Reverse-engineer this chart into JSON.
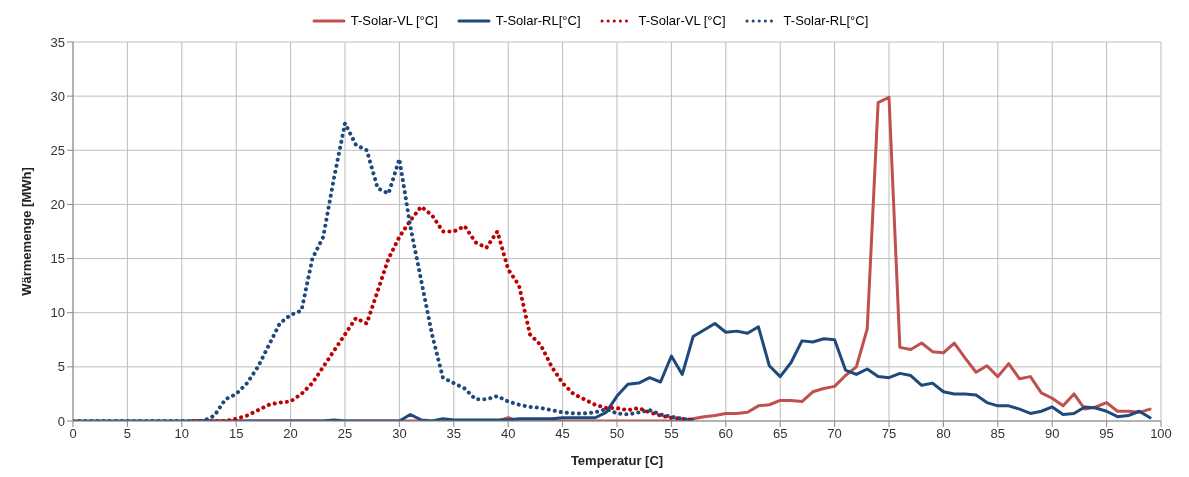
{
  "chart_data": {
    "type": "line",
    "xlabel": "Temperatur [C]",
    "ylabel": "Wärmemenge [MWh]",
    "x": [
      0,
      1,
      2,
      3,
      4,
      5,
      6,
      7,
      8,
      9,
      10,
      11,
      12,
      13,
      14,
      15,
      16,
      17,
      18,
      19,
      20,
      21,
      22,
      23,
      24,
      25,
      26,
      27,
      28,
      29,
      30,
      31,
      32,
      33,
      34,
      35,
      36,
      37,
      38,
      39,
      40,
      41,
      42,
      43,
      44,
      45,
      46,
      47,
      48,
      49,
      50,
      51,
      52,
      53,
      54,
      55,
      56,
      57,
      58,
      59,
      60,
      61,
      62,
      63,
      64,
      65,
      66,
      67,
      68,
      69,
      70,
      71,
      72,
      73,
      74,
      75,
      76,
      77,
      78,
      79,
      80,
      81,
      82,
      83,
      84,
      85,
      86,
      87,
      88,
      89,
      90,
      91,
      92,
      93,
      94,
      95,
      96,
      97,
      98,
      99
    ],
    "series": [
      {
        "name": "T-Solar-VL [°C]",
        "color": "#c0504d",
        "line_style": "solid",
        "values": [
          null,
          null,
          null,
          null,
          null,
          null,
          null,
          null,
          null,
          null,
          null,
          0,
          0,
          0,
          0,
          0,
          0,
          0,
          0,
          0,
          0,
          0,
          0,
          0,
          0,
          0,
          0,
          0,
          0,
          0,
          0,
          0,
          0,
          0,
          0,
          0,
          0,
          0,
          0,
          0,
          0.3,
          0,
          0,
          0,
          0,
          0,
          0,
          0,
          0,
          0,
          0,
          0,
          0,
          0,
          0,
          0,
          0,
          0.2,
          0.4,
          0.5,
          0.7,
          0.7,
          0.8,
          1.4,
          1.5,
          1.9,
          1.9,
          1.8,
          2.7,
          3,
          3.2,
          4.2,
          5,
          8.5,
          29.4,
          29.9,
          6.8,
          6.6,
          7.2,
          6.4,
          6.3,
          7.2,
          5.8,
          4.5,
          5.1,
          4.1,
          5.3,
          3.9,
          4.1,
          2.6,
          2.1,
          1.4,
          2.5,
          1.1,
          1.3,
          1.7,
          0.9,
          0.9,
          0.8,
          1.1
        ]
      },
      {
        "name": "T-Solar-RL[°C]",
        "color": "#1f497d",
        "line_style": "solid",
        "values": [
          0,
          0,
          0,
          0,
          0,
          0,
          0,
          0,
          0,
          0,
          0,
          0,
          0,
          0,
          0,
          0,
          0,
          0,
          0,
          0,
          0,
          0,
          0,
          0,
          0.1,
          0,
          0,
          0,
          0,
          0,
          0,
          0.6,
          0.1,
          0,
          0.2,
          0.1,
          0.1,
          0.1,
          0.1,
          0.1,
          0.1,
          0.2,
          0.2,
          0.2,
          0.2,
          0.3,
          0.3,
          0.3,
          0.3,
          0.8,
          2.3,
          3.4,
          3.5,
          4,
          3.6,
          6,
          4.3,
          7.8,
          8.4,
          9,
          8.2,
          8.3,
          8.1,
          8.7,
          5.1,
          4.1,
          5.4,
          7.4,
          7.3,
          7.6,
          7.5,
          4.7,
          4.3,
          4.8,
          4.1,
          4,
          4.4,
          4.2,
          3.3,
          3.5,
          2.7,
          2.5,
          2.5,
          2.4,
          1.7,
          1.4,
          1.4,
          1.1,
          0.7,
          0.9,
          1.3,
          0.6,
          0.7,
          1.3,
          1.2,
          0.9,
          0.4,
          0.5,
          0.9,
          0.3
        ]
      },
      {
        "name": "T-Solar-VL [°C]",
        "color": "#c00000",
        "line_style": "dotted",
        "values": [
          null,
          null,
          null,
          null,
          null,
          null,
          null,
          null,
          null,
          null,
          null,
          0,
          0,
          0,
          0,
          0.2,
          0.5,
          1,
          1.5,
          1.7,
          1.8,
          2.5,
          3.5,
          5,
          6.5,
          8,
          9.5,
          9,
          12,
          15,
          17,
          18.5,
          19.8,
          19,
          17.5,
          17.5,
          18,
          16.5,
          16,
          17.5,
          14,
          12.5,
          8,
          7,
          5,
          3.5,
          2.5,
          2,
          1.5,
          1.2,
          1.2,
          1,
          1.2,
          0.8,
          0.5,
          0.3,
          0.2,
          0.1,
          null,
          null,
          null,
          null,
          null,
          null,
          null,
          null,
          null,
          null,
          null,
          null,
          null,
          null,
          null,
          null,
          null,
          null,
          null,
          null,
          null,
          null,
          null,
          null,
          null,
          null,
          null,
          null,
          null,
          null,
          null,
          null,
          null,
          null,
          null,
          null,
          null,
          null,
          null,
          null,
          null,
          null
        ]
      },
      {
        "name": "T-Solar-RL[°C]",
        "color": "#1f497d",
        "line_style": "dotted",
        "values": [
          0,
          0,
          0,
          0,
          0,
          0,
          0,
          0,
          0,
          0,
          0,
          0,
          0,
          0.5,
          2,
          2.5,
          3.5,
          5,
          7,
          9,
          9.8,
          10.2,
          15,
          17,
          22.5,
          27.5,
          25.5,
          25,
          21.5,
          21,
          24.2,
          18,
          13,
          8,
          4,
          3.5,
          3,
          2,
          2,
          2.3,
          1.8,
          1.5,
          1.3,
          1.2,
          1,
          0.8,
          0.7,
          0.7,
          0.8,
          1.1,
          0.7,
          0.6,
          0.8,
          1,
          0.6,
          0.4,
          0.2,
          0.1,
          null,
          null,
          null,
          null,
          null,
          null,
          null,
          null,
          null,
          null,
          null,
          null,
          null,
          null,
          null,
          null,
          null,
          null,
          null,
          null,
          null,
          null,
          null,
          null,
          null,
          null,
          null,
          null,
          null,
          null,
          null,
          null,
          null,
          null,
          null,
          null,
          null,
          null,
          null,
          null,
          null,
          null
        ]
      }
    ],
    "xlim": [
      0,
      100
    ],
    "xticks": [
      0,
      5,
      10,
      15,
      20,
      25,
      30,
      35,
      40,
      45,
      50,
      55,
      60,
      65,
      70,
      75,
      80,
      85,
      90,
      95,
      100
    ],
    "ylim": [
      0,
      35
    ],
    "yticks": [
      0,
      5,
      10,
      15,
      20,
      25,
      30,
      35
    ],
    "grid": true,
    "legend": "top",
    "marker": "none"
  }
}
